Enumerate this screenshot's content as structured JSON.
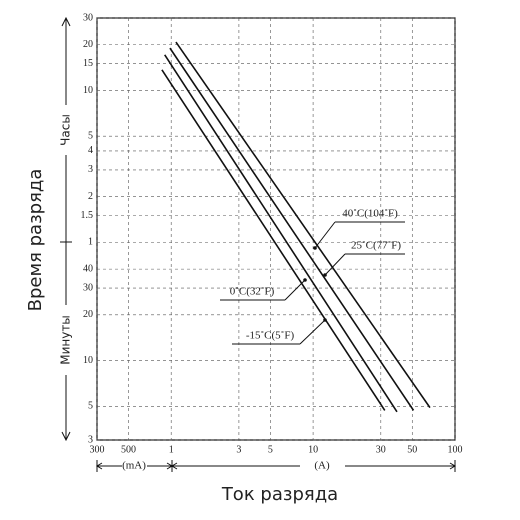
{
  "chart_data": {
    "type": "line",
    "y_label": "Время разряда",
    "y_upper_label": "Часы",
    "y_lower_label": "Минуты",
    "x_label": "Ток разряда",
    "x_unit_left": "(mA)",
    "x_unit_right": "(A)",
    "log_x": true,
    "log_y": true,
    "grid": true,
    "xlim": [
      0.3,
      100
    ],
    "xticks": [
      {
        "value": 0.3,
        "label": "300"
      },
      {
        "value": 0.5,
        "label": "500"
      },
      1,
      3,
      5,
      10,
      30,
      50,
      100
    ],
    "ylim": [
      3,
      1800
    ],
    "yticks": [
      {
        "value": 1800,
        "label": "30"
      },
      {
        "value": 1200,
        "label": "20"
      },
      {
        "value": 900,
        "label": "15"
      },
      {
        "value": 600,
        "label": "10"
      },
      {
        "value": 300,
        "label": "5"
      },
      {
        "value": 240,
        "label": "4"
      },
      {
        "value": 180,
        "label": "3"
      },
      {
        "value": 120,
        "label": "2"
      },
      {
        "value": 90,
        "label": "1.5"
      },
      {
        "value": 60,
        "label": "1"
      },
      40,
      30,
      20,
      10,
      5,
      3
    ],
    "series": [
      {
        "name": "40˚C(104˚F)",
        "color": "#111",
        "x": [
          1.08,
          66.6
        ],
        "values": [
          1250,
          4.9
        ]
      },
      {
        "name": "25˚C(77˚F)",
        "color": "#111",
        "x": [
          0.98,
          51
        ],
        "values": [
          1140,
          4.7
        ]
      },
      {
        "name": "0˚C(32˚F)",
        "color": "#111",
        "x": [
          0.9,
          39
        ],
        "values": [
          1030,
          4.6
        ]
      },
      {
        "name": "-15˚C(5˚F)",
        "color": "#111",
        "x": [
          0.86,
          32
        ],
        "values": [
          820,
          4.7
        ]
      }
    ]
  }
}
